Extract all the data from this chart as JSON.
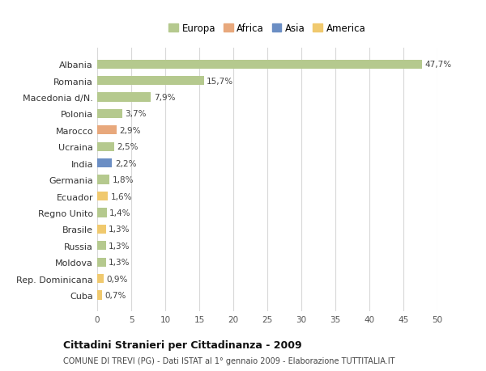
{
  "categories": [
    "Albania",
    "Romania",
    "Macedonia d/N.",
    "Polonia",
    "Marocco",
    "Ucraina",
    "India",
    "Germania",
    "Ecuador",
    "Regno Unito",
    "Brasile",
    "Russia",
    "Moldova",
    "Rep. Dominicana",
    "Cuba"
  ],
  "values": [
    47.7,
    15.7,
    7.9,
    3.7,
    2.9,
    2.5,
    2.2,
    1.8,
    1.6,
    1.4,
    1.3,
    1.3,
    1.3,
    0.9,
    0.7
  ],
  "labels": [
    "47,7%",
    "15,7%",
    "7,9%",
    "3,7%",
    "2,9%",
    "2,5%",
    "2,2%",
    "1,8%",
    "1,6%",
    "1,4%",
    "1,3%",
    "1,3%",
    "1,3%",
    "0,9%",
    "0,7%"
  ],
  "colors": [
    "#b5c98e",
    "#b5c98e",
    "#b5c98e",
    "#b5c98e",
    "#e8a87c",
    "#b5c98e",
    "#6b8ec4",
    "#b5c98e",
    "#f0c96e",
    "#b5c98e",
    "#f0c96e",
    "#b5c98e",
    "#b5c98e",
    "#f0c96e",
    "#f0c96e"
  ],
  "legend_labels": [
    "Europa",
    "Africa",
    "Asia",
    "America"
  ],
  "legend_colors": [
    "#b5c98e",
    "#e8a87c",
    "#6b8ec4",
    "#f0c96e"
  ],
  "title": "Cittadini Stranieri per Cittadinanza - 2009",
  "subtitle": "COMUNE DI TREVI (PG) - Dati ISTAT al 1° gennaio 2009 - Elaborazione TUTTITALIA.IT",
  "xlim": [
    0,
    50
  ],
  "xticks": [
    0,
    5,
    10,
    15,
    20,
    25,
    30,
    35,
    40,
    45,
    50
  ],
  "bg_color": "#ffffff",
  "grid_color": "#d8d8d8"
}
